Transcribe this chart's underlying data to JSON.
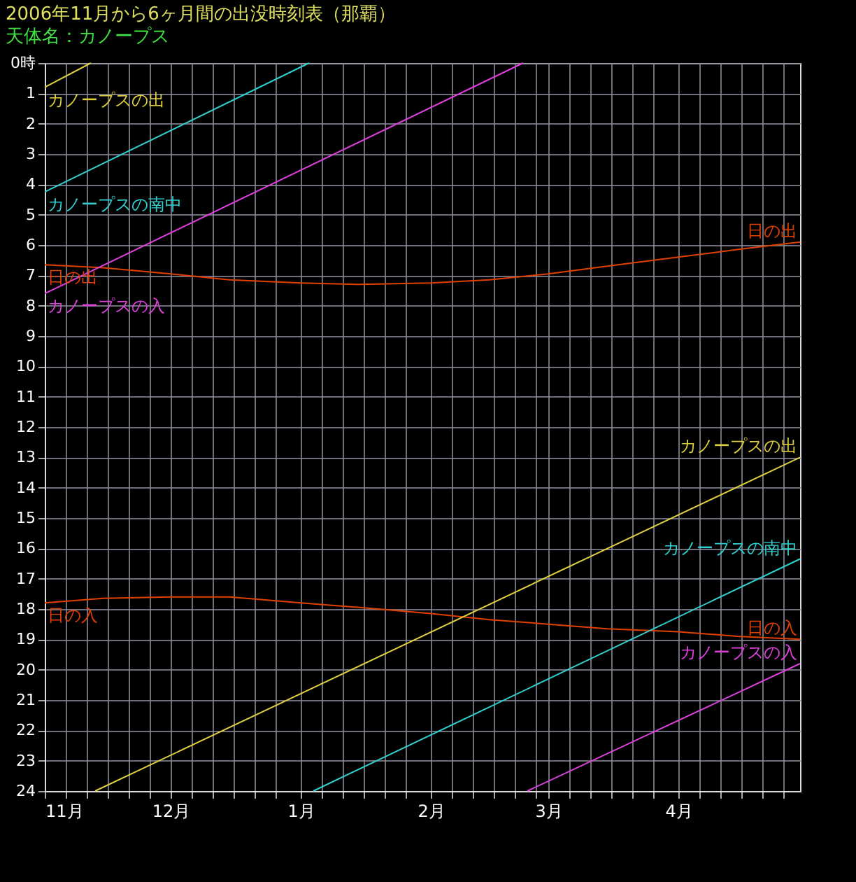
{
  "chart_data": {
    "type": "line",
    "title": "2006年11月から6ヶ月間の出没時刻表（那覇）",
    "subtitle": "天体名：カノープス",
    "series": [
      {
        "name": "日の出",
        "color": "#e04000",
        "x": [
          "2006-11-01",
          "2006-11-15",
          "2006-12-01",
          "2006-12-15",
          "2007-01-01",
          "2007-01-15",
          "2007-02-01",
          "2007-02-15",
          "2007-03-01",
          "2007-03-15",
          "2007-04-01",
          "2007-04-15",
          "2007-04-30"
        ],
        "values": [
          6.65,
          6.75,
          6.95,
          7.15,
          7.25,
          7.3,
          7.25,
          7.15,
          6.95,
          6.7,
          6.4,
          6.15,
          5.9
        ]
      },
      {
        "name": "日の入",
        "color": "#e04000",
        "x": [
          "2006-11-01",
          "2006-11-15",
          "2006-12-01",
          "2006-12-15",
          "2007-01-01",
          "2007-01-15",
          "2007-02-01",
          "2007-02-15",
          "2007-03-01",
          "2007-03-15",
          "2007-04-01",
          "2007-04-15",
          "2007-04-30"
        ],
        "values": [
          17.8,
          17.65,
          17.6,
          17.6,
          17.8,
          17.95,
          18.15,
          18.35,
          18.5,
          18.65,
          18.75,
          18.9,
          19.0
        ]
      },
      {
        "name": "カノープスの出",
        "color": "#e0d040",
        "x": [
          "2006-11-01",
          "2006-11-12"
        ],
        "values": [
          0.8,
          0
        ]
      },
      {
        "name": "カノープスの出",
        "color": "#e0d040",
        "x": [
          "2006-11-13",
          "2007-04-30"
        ],
        "values": [
          24,
          13.0
        ]
      },
      {
        "name": "カノープスの南中",
        "color": "#30d0d0",
        "x": [
          "2006-11-01",
          "2007-01-03"
        ],
        "values": [
          4.25,
          0
        ]
      },
      {
        "name": "カノープスの南中",
        "color": "#30d0d0",
        "x": [
          "2007-01-04",
          "2007-04-30"
        ],
        "values": [
          24,
          16.35
        ]
      },
      {
        "name": "カノープスの入",
        "color": "#e040e0",
        "x": [
          "2006-11-01",
          "2007-02-23"
        ],
        "values": [
          7.6,
          0
        ]
      },
      {
        "name": "カノープスの入",
        "color": "#e040e0",
        "x": [
          "2007-02-24",
          "2007-04-30"
        ],
        "values": [
          24,
          19.8
        ]
      }
    ],
    "xlim": [
      "2006-11-01",
      "2007-04-30"
    ],
    "xticks": [
      {
        "value": "2006-11-01",
        "label": "11月"
      },
      {
        "value": "2006-11-06",
        "label": null
      },
      {
        "value": "2006-11-11",
        "label": null
      },
      {
        "value": "2006-11-16",
        "label": null
      },
      {
        "value": "2006-11-21",
        "label": null
      },
      {
        "value": "2006-11-26",
        "label": null
      },
      {
        "value": "2006-12-01",
        "label": "12月"
      },
      {
        "value": "2006-12-06",
        "label": null
      },
      {
        "value": "2006-12-11",
        "label": null
      },
      {
        "value": "2006-12-16",
        "label": null
      },
      {
        "value": "2006-12-21",
        "label": null
      },
      {
        "value": "2006-12-26",
        "label": null
      },
      {
        "value": "2007-01-01",
        "label": "1月"
      },
      {
        "value": "2007-01-06",
        "label": null
      },
      {
        "value": "2007-01-11",
        "label": null
      },
      {
        "value": "2007-01-16",
        "label": null
      },
      {
        "value": "2007-01-21",
        "label": null
      },
      {
        "value": "2007-01-26",
        "label": null
      },
      {
        "value": "2007-02-01",
        "label": "2月"
      },
      {
        "value": "2007-02-06",
        "label": null
      },
      {
        "value": "2007-02-11",
        "label": null
      },
      {
        "value": "2007-02-16",
        "label": null
      },
      {
        "value": "2007-02-21",
        "label": null
      },
      {
        "value": "2007-02-26",
        "label": null
      },
      {
        "value": "2007-03-01",
        "label": "3月"
      },
      {
        "value": "2007-03-06",
        "label": null
      },
      {
        "value": "2007-03-11",
        "label": null
      },
      {
        "value": "2007-03-16",
        "label": null
      },
      {
        "value": "2007-03-21",
        "label": null
      },
      {
        "value": "2007-03-26",
        "label": null
      },
      {
        "value": "2007-04-01",
        "label": "4月"
      },
      {
        "value": "2007-04-06",
        "label": null
      },
      {
        "value": "2007-04-11",
        "label": null
      },
      {
        "value": "2007-04-16",
        "label": null
      },
      {
        "value": "2007-04-21",
        "label": null
      },
      {
        "value": "2007-04-26",
        "label": null
      }
    ],
    "ylim": [
      24,
      0
    ],
    "yticks": [
      {
        "value": 0,
        "label": "0時"
      },
      1,
      2,
      3,
      4,
      5,
      6,
      7,
      8,
      9,
      10,
      11,
      12,
      13,
      14,
      15,
      16,
      17,
      18,
      19,
      20,
      21,
      22,
      23,
      24
    ],
    "grid": true,
    "line_style": "solid",
    "marker": "none"
  }
}
